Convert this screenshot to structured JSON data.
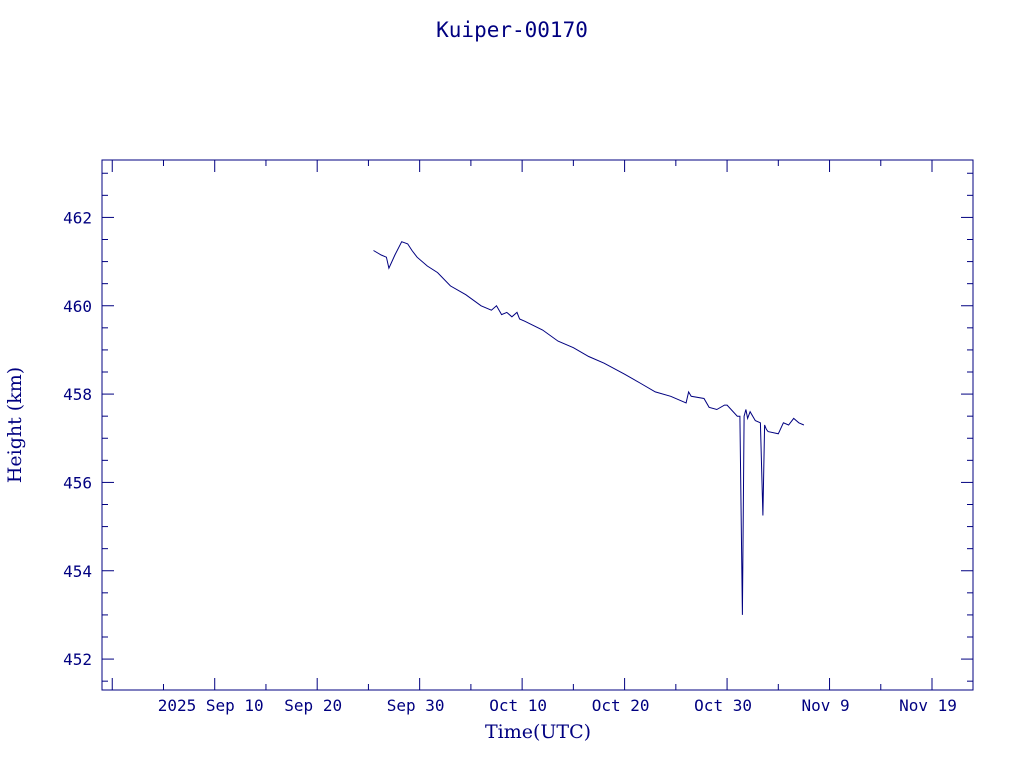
{
  "colors": {
    "ink": "#000080",
    "background": "#ffffff"
  },
  "chart_data": {
    "type": "line",
    "title": "Kuiper-00170",
    "xlabel": "Time(UTC)",
    "ylabel": "Height (km)",
    "grid": false,
    "xlim": [
      "2025-08-30",
      "2025-11-23"
    ],
    "ylim": [
      451.3,
      463.3
    ],
    "x_ticks": [
      {
        "date": "2025-09-10",
        "label": "2025 Sep 10"
      },
      {
        "date": "2025-09-20",
        "label": "Sep 20"
      },
      {
        "date": "2025-09-30",
        "label": "Sep 30"
      },
      {
        "date": "2025-10-10",
        "label": "Oct 10"
      },
      {
        "date": "2025-10-20",
        "label": "Oct 20"
      },
      {
        "date": "2025-10-30",
        "label": "Oct 30"
      },
      {
        "date": "2025-11-09",
        "label": "Nov  9"
      },
      {
        "date": "2025-11-19",
        "label": "Nov 19"
      }
    ],
    "y_ticks": [
      {
        "value": 452,
        "label": "452"
      },
      {
        "value": 454,
        "label": "454"
      },
      {
        "value": 456,
        "label": "456"
      },
      {
        "value": 458,
        "label": "458"
      },
      {
        "value": 460,
        "label": "460"
      },
      {
        "value": 462,
        "label": "462"
      }
    ],
    "series": [
      {
        "x": [
          "2025-09-25 12:00",
          "2025-09-26 06:00",
          "2025-09-26 18:00",
          "2025-09-27 00:00",
          "2025-09-27 14:00",
          "2025-09-28 06:00",
          "2025-09-28 20:00",
          "2025-09-29 06:00",
          "2025-09-29 18:00",
          "2025-09-30 18:00",
          "2025-10-01 18:00",
          "2025-10-03 00:00",
          "2025-10-04 12:00",
          "2025-10-06 00:00",
          "2025-10-07 00:00",
          "2025-10-07 12:00",
          "2025-10-08 00:00",
          "2025-10-08 12:00",
          "2025-10-09 00:00",
          "2025-10-09 12:00",
          "2025-10-09 18:00",
          "2025-10-10 06:00",
          "2025-10-12 00:00",
          "2025-10-13 12:00",
          "2025-10-15 00:00",
          "2025-10-16 12:00",
          "2025-10-18 00:00",
          "2025-10-20 00:00",
          "2025-10-21 12:00",
          "2025-10-23 00:00",
          "2025-10-24 12:00",
          "2025-10-26 00:00",
          "2025-10-26 06:00",
          "2025-10-26 12:00",
          "2025-10-27 18:00",
          "2025-10-28 06:00",
          "2025-10-29 00:00",
          "2025-10-29 18:00",
          "2025-10-30 00:00",
          "2025-10-31 00:00",
          "2025-10-31 06:00",
          "2025-10-31 12:00",
          "2025-10-31 16:00",
          "2025-10-31 20:00",
          "2025-11-01 00:00",
          "2025-11-01 06:00",
          "2025-11-01 18:00",
          "2025-11-02 06:00",
          "2025-11-02 12:00",
          "2025-11-02 16:00",
          "2025-11-02 20:00",
          "2025-11-03 00:00",
          "2025-11-04 00:00",
          "2025-11-04 12:00",
          "2025-11-05 00:00",
          "2025-11-05 12:00",
          "2025-11-06 00:00",
          "2025-11-06 12:00"
        ],
        "y": [
          461.25,
          461.15,
          461.1,
          460.85,
          461.15,
          461.45,
          461.4,
          461.25,
          461.1,
          460.9,
          460.75,
          460.45,
          460.25,
          460.0,
          459.9,
          460.0,
          459.8,
          459.85,
          459.75,
          459.85,
          459.7,
          459.65,
          459.45,
          459.2,
          459.05,
          458.85,
          458.7,
          458.45,
          458.25,
          458.05,
          457.95,
          457.8,
          458.05,
          457.95,
          457.9,
          457.7,
          457.65,
          457.75,
          457.75,
          457.5,
          457.5,
          453.0,
          457.5,
          457.65,
          457.45,
          457.6,
          457.4,
          457.35,
          455.25,
          457.3,
          457.2,
          457.15,
          457.1,
          457.35,
          457.3,
          457.45,
          457.35,
          457.3
        ]
      }
    ]
  }
}
